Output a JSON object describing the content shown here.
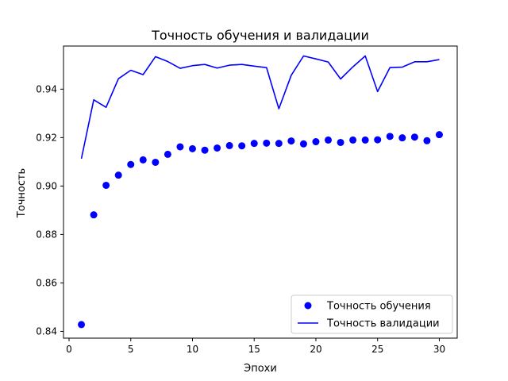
{
  "chart_data": {
    "type": "line",
    "title": "Точность обучения и валидации",
    "xlabel": "Эпохи",
    "ylabel": "Точность",
    "xlim": [
      -0.45,
      31.45
    ],
    "ylim": [
      0.8372,
      0.9578
    ],
    "xticks": [
      0,
      5,
      10,
      15,
      20,
      25,
      30
    ],
    "yticks": [
      0.84,
      0.86,
      0.88,
      0.9,
      0.92,
      0.94
    ],
    "ytick_labels": [
      "0.84",
      "0.86",
      "0.88",
      "0.90",
      "0.92",
      "0.94"
    ],
    "grid": false,
    "legend_position": "lower-right",
    "x": [
      1,
      2,
      3,
      4,
      5,
      6,
      7,
      8,
      9,
      10,
      11,
      12,
      13,
      14,
      15,
      16,
      17,
      18,
      19,
      20,
      21,
      22,
      23,
      24,
      25,
      26,
      27,
      28,
      29,
      30
    ],
    "series": [
      {
        "name": "Точность обучения",
        "style": "markers",
        "color": "#0000ff",
        "values": [
          0.8428,
          0.8881,
          0.9003,
          0.9045,
          0.9089,
          0.9108,
          0.9098,
          0.9131,
          0.9162,
          0.9154,
          0.9148,
          0.9157,
          0.9167,
          0.9166,
          0.9176,
          0.9177,
          0.9176,
          0.9186,
          0.9174,
          0.9183,
          0.919,
          0.918,
          0.919,
          0.919,
          0.9191,
          0.9205,
          0.9199,
          0.9202,
          0.9187,
          0.9212
        ]
      },
      {
        "name": "Точность валидации",
        "style": "line",
        "color": "#0000ff",
        "values": [
          0.9113,
          0.9356,
          0.9325,
          0.9443,
          0.9478,
          0.946,
          0.9534,
          0.9514,
          0.9486,
          0.9497,
          0.9502,
          0.9487,
          0.9499,
          0.9502,
          0.9495,
          0.9489,
          0.9319,
          0.9457,
          0.9537,
          0.9525,
          0.9512,
          0.9442,
          0.9492,
          0.9537,
          0.939,
          0.9489,
          0.9491,
          0.9513,
          0.9513,
          0.9522
        ]
      }
    ]
  }
}
